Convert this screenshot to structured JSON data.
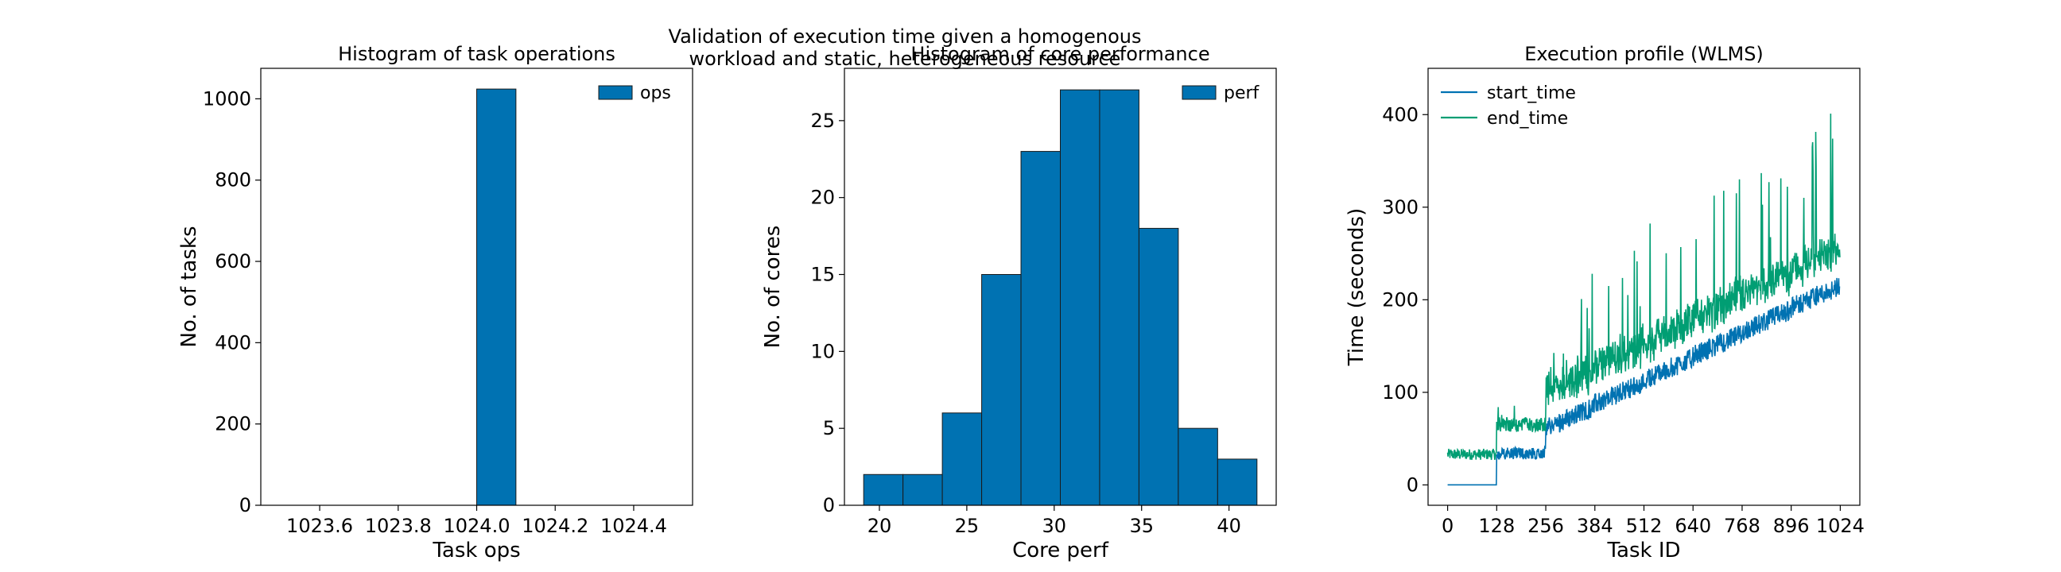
{
  "figure": {
    "suptitle_line1": "Validation of execution time given a homogenous",
    "suptitle_line2": "workload and static, heterogeneous resource"
  },
  "chart_data": [
    {
      "type": "bar",
      "title": "Histogram of task operations",
      "xlabel": "Task ops",
      "ylabel": "No. of tasks",
      "xlim": [
        1023.45,
        1024.55
      ],
      "ylim": [
        0,
        1075
      ],
      "xticks": [
        "1023.6",
        "1023.8",
        "1024.0",
        "1024.2",
        "1024.4"
      ],
      "xtick_values": [
        1023.6,
        1023.8,
        1024.0,
        1024.2,
        1024.4
      ],
      "yticks": [
        "0",
        "200",
        "400",
        "600",
        "800",
        "1000"
      ],
      "ytick_values": [
        0,
        200,
        400,
        600,
        800,
        1000
      ],
      "bins": [
        [
          1024.0,
          1024.1
        ]
      ],
      "values": [
        1024
      ],
      "legend": [
        "ops"
      ],
      "legend_position": "top-right",
      "color": "#0072B2",
      "grid": false
    },
    {
      "type": "bar",
      "title": "Histogram of core performance",
      "xlabel": "Core perf",
      "ylabel": "No. of cores",
      "xlim": [
        18.0,
        42.7
      ],
      "ylim": [
        0,
        28.4
      ],
      "xticks": [
        "20",
        "25",
        "30",
        "35",
        "40"
      ],
      "xtick_values": [
        20,
        25,
        30,
        35,
        40
      ],
      "yticks": [
        "0",
        "5",
        "10",
        "15",
        "20",
        "25"
      ],
      "ytick_values": [
        0,
        5,
        10,
        15,
        20,
        25
      ],
      "bin_edges": [
        19.1,
        21.35,
        23.6,
        25.85,
        28.1,
        30.35,
        32.6,
        34.85,
        37.1,
        39.35,
        41.6
      ],
      "values": [
        2,
        2,
        6,
        15,
        23,
        27,
        27,
        18,
        5,
        3
      ],
      "legend": [
        "perf"
      ],
      "legend_position": "top-right",
      "color": "#0072B2",
      "grid": false
    },
    {
      "type": "line",
      "title": "Execution profile (WLMS)",
      "xlabel": "Task ID",
      "ylabel": "Time (seconds)",
      "xlim": [
        -51,
        1075
      ],
      "ylim": [
        -22,
        450
      ],
      "xticks": [
        "0",
        "128",
        "256",
        "384",
        "512",
        "640",
        "768",
        "896",
        "1024"
      ],
      "xtick_values": [
        0,
        128,
        256,
        384,
        512,
        640,
        768,
        896,
        1024
      ],
      "yticks": [
        "0",
        "100",
        "200",
        "300",
        "400"
      ],
      "ytick_values": [
        0,
        100,
        200,
        300,
        400
      ],
      "series": [
        {
          "name": "start_time",
          "color": "#0072B2"
        },
        {
          "name": "end_time",
          "color": "#009E73"
        }
      ],
      "generation_note": "1024 tasks; waves of 128 tasks; start_time 0 for first wave then increases roughly linearly to ~220 s; end_time starts ~33 s and rises to ~260 s with spikes up to ~430 s",
      "legend_position": "top-left",
      "grid": false
    }
  ]
}
